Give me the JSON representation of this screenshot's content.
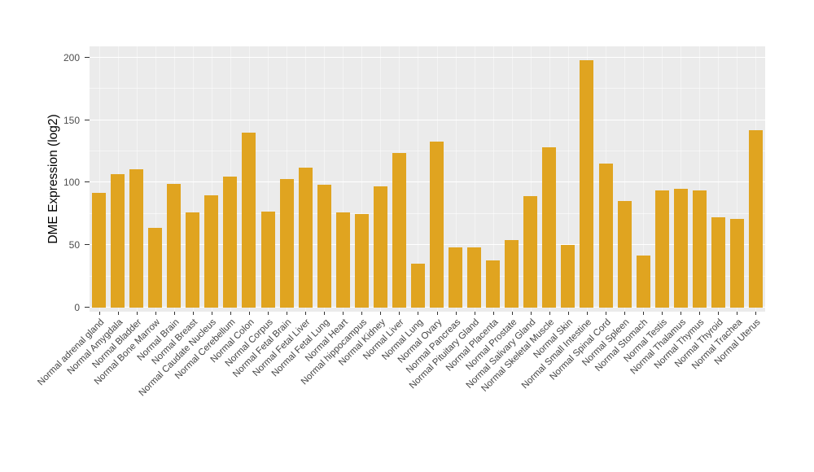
{
  "chart_data": {
    "type": "bar",
    "title": "",
    "xlabel": "",
    "ylabel": "DME Expression (log2)",
    "yticks": [
      0,
      50,
      100,
      150,
      200
    ],
    "ylim": [
      0,
      209
    ],
    "grid": "on",
    "legend": "none",
    "bar_color": "#E0A420",
    "panel_bg": "#EBEBEB",
    "categories": [
      "Normal adrenal gland",
      "Normal Amygdala",
      "Normal Bladder",
      "Normal Bone Marrow",
      "Normal Brain",
      "Normal Breast",
      "Normal Caudate Nucleus",
      "Normal Cerebellum",
      "Normal Colon",
      "Normal Corpus",
      "Normal Fetal Brain",
      "Normal Fetal Liver",
      "Normal Fetal Lung",
      "Normal Heart",
      "Normal hippocampus",
      "Normal Kidney",
      "Normal Liver",
      "Normal Lung",
      "Normal Ovary",
      "Normal Pancreas",
      "Normal Pituitary Gland",
      "Normal Placenta",
      "Normal Prostate",
      "Normal Salivary Gland",
      "Normal Skeletal Muscle",
      "Normal Skin",
      "Normal Small Intestine",
      "Normal Spinal Cord",
      "Normal Spleen",
      "Normal Stomach",
      "Normal Testis",
      "Normal Thalamus",
      "Normal Thymus",
      "Normal Thyroid",
      "Normal Trachea",
      "Normal Uterus"
    ],
    "values": [
      92,
      107,
      111,
      64,
      99,
      76,
      90,
      105,
      140,
      77,
      103,
      112,
      98,
      76,
      75,
      97,
      124,
      35,
      133,
      48,
      48,
      38,
      54,
      89,
      128,
      50,
      198,
      115,
      85,
      42,
      94,
      95,
      94,
      72,
      71,
      142
    ]
  }
}
